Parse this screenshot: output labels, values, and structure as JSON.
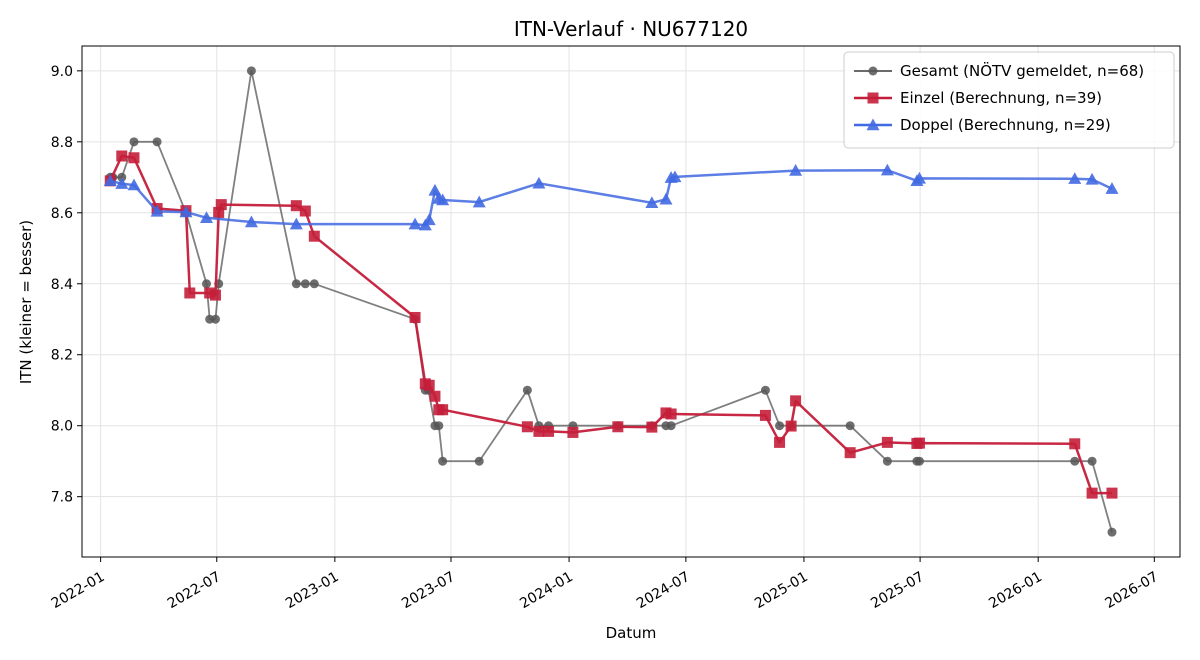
{
  "chart_data": {
    "type": "line",
    "title": "ITN-Verlauf · NU677120",
    "xlabel": "Datum",
    "ylabel": "ITN  (kleiner = besser)",
    "x_ticks": [
      "2022-01",
      "2022-07",
      "2023-01",
      "2023-07",
      "2024-01",
      "2024-07",
      "2025-01",
      "2025-07",
      "2026-01",
      "2026-07"
    ],
    "y_ticks": [
      "7.8",
      "8.0",
      "8.2",
      "8.4",
      "8.6",
      "8.8",
      "9.0"
    ],
    "xlim": [
      "2021-12-03",
      "2026-08-10"
    ],
    "ylim": [
      7.63,
      9.07
    ],
    "grid": true,
    "legend_position": "top-right",
    "series": [
      {
        "name": "Gesamt (NÖTV gemeldet, n=68)",
        "color": "#555555",
        "marker": "circle",
        "points": [
          [
            "2022-01-16",
            8.7
          ],
          [
            "2022-01-20",
            8.7
          ],
          [
            "2022-02-03",
            8.7
          ],
          [
            "2022-02-22",
            8.8
          ],
          [
            "2022-03-30",
            8.8
          ],
          [
            "2022-05-14",
            8.6
          ],
          [
            "2022-06-15",
            8.4
          ],
          [
            "2022-06-20",
            8.3
          ],
          [
            "2022-06-29",
            8.3
          ],
          [
            "2022-07-04",
            8.4
          ],
          [
            "2022-08-24",
            9.0
          ],
          [
            "2022-11-02",
            8.4
          ],
          [
            "2022-11-16",
            8.4
          ],
          [
            "2022-11-30",
            8.4
          ],
          [
            "2023-05-06",
            8.3
          ],
          [
            "2023-05-22",
            8.1
          ],
          [
            "2023-05-27",
            8.1
          ],
          [
            "2023-06-06",
            8.0
          ],
          [
            "2023-06-12",
            8.0
          ],
          [
            "2023-06-18",
            7.9
          ],
          [
            "2023-08-14",
            7.9
          ],
          [
            "2023-10-28",
            8.1
          ],
          [
            "2023-11-15",
            8.0
          ],
          [
            "2023-11-30",
            8.0
          ],
          [
            "2024-01-07",
            8.0
          ],
          [
            "2024-03-17",
            8.0
          ],
          [
            "2024-05-09",
            8.0
          ],
          [
            "2024-05-31",
            8.0
          ],
          [
            "2024-06-08",
            8.0
          ],
          [
            "2024-11-02",
            8.1
          ],
          [
            "2024-11-24",
            8.0
          ],
          [
            "2024-12-12",
            8.0
          ],
          [
            "2025-03-14",
            8.0
          ],
          [
            "2025-05-11",
            7.9
          ],
          [
            "2025-06-26",
            7.9
          ],
          [
            "2025-06-30",
            7.9
          ],
          [
            "2026-02-27",
            7.9
          ],
          [
            "2026-03-26",
            7.9
          ],
          [
            "2026-04-26",
            7.7
          ]
        ]
      },
      {
        "name": "Einzel (Berechnung, n=39)",
        "color": "#c41e3a",
        "marker": "square",
        "points": [
          [
            "2022-01-16",
            8.69
          ],
          [
            "2022-02-03",
            8.76
          ],
          [
            "2022-02-22",
            8.755
          ],
          [
            "2022-03-30",
            8.612
          ],
          [
            "2022-05-14",
            8.606
          ],
          [
            "2022-05-20",
            8.374
          ],
          [
            "2022-06-20",
            8.374
          ],
          [
            "2022-06-29",
            8.368
          ],
          [
            "2022-07-04",
            8.601
          ],
          [
            "2022-07-08",
            8.623
          ],
          [
            "2022-11-02",
            8.62
          ],
          [
            "2022-11-16",
            8.605
          ],
          [
            "2022-11-30",
            8.534
          ],
          [
            "2023-05-06",
            8.305
          ],
          [
            "2023-05-22",
            8.118
          ],
          [
            "2023-05-28",
            8.114
          ],
          [
            "2023-06-06",
            8.083
          ],
          [
            "2023-06-12",
            8.045
          ],
          [
            "2023-06-18",
            8.045
          ],
          [
            "2023-10-28",
            7.997
          ],
          [
            "2023-11-15",
            7.984
          ],
          [
            "2023-11-30",
            7.984
          ],
          [
            "2024-01-07",
            7.981
          ],
          [
            "2024-03-17",
            7.997
          ],
          [
            "2024-05-09",
            7.996
          ],
          [
            "2024-05-31",
            8.036
          ],
          [
            "2024-06-08",
            8.033
          ],
          [
            "2024-11-02",
            8.029
          ],
          [
            "2024-11-24",
            7.953
          ],
          [
            "2024-12-12",
            7.999
          ],
          [
            "2024-12-19",
            8.07
          ],
          [
            "2025-03-14",
            7.924
          ],
          [
            "2025-05-11",
            7.953
          ],
          [
            "2025-06-26",
            7.95
          ],
          [
            "2025-06-30",
            7.951
          ],
          [
            "2026-02-27",
            7.949
          ],
          [
            "2026-03-26",
            7.81
          ],
          [
            "2026-04-26",
            7.81
          ]
        ]
      },
      {
        "name": "Doppel (Berechnung, n=29)",
        "color": "#4169e1",
        "marker": "triangle",
        "points": [
          [
            "2022-01-16",
            8.69
          ],
          [
            "2022-02-03",
            8.682
          ],
          [
            "2022-02-22",
            8.678
          ],
          [
            "2022-03-30",
            8.604
          ],
          [
            "2022-05-14",
            8.602
          ],
          [
            "2022-06-15",
            8.586
          ],
          [
            "2022-08-24",
            8.574
          ],
          [
            "2022-11-02",
            8.568
          ],
          [
            "2023-05-06",
            8.568
          ],
          [
            "2023-05-22",
            8.565
          ],
          [
            "2023-05-28",
            8.58
          ],
          [
            "2023-06-06",
            8.663
          ],
          [
            "2023-06-12",
            8.64
          ],
          [
            "2023-06-18",
            8.636
          ],
          [
            "2023-08-14",
            8.63
          ],
          [
            "2023-11-15",
            8.683
          ],
          [
            "2024-05-09",
            8.628
          ],
          [
            "2024-05-31",
            8.638
          ],
          [
            "2024-06-08",
            8.699
          ],
          [
            "2024-06-14",
            8.701
          ],
          [
            "2024-12-19",
            8.719
          ],
          [
            "2025-05-11",
            8.72
          ],
          [
            "2025-06-26",
            8.69
          ],
          [
            "2025-06-30",
            8.697
          ],
          [
            "2026-02-27",
            8.696
          ],
          [
            "2026-03-26",
            8.694
          ],
          [
            "2026-04-26",
            8.668
          ]
        ]
      }
    ]
  }
}
